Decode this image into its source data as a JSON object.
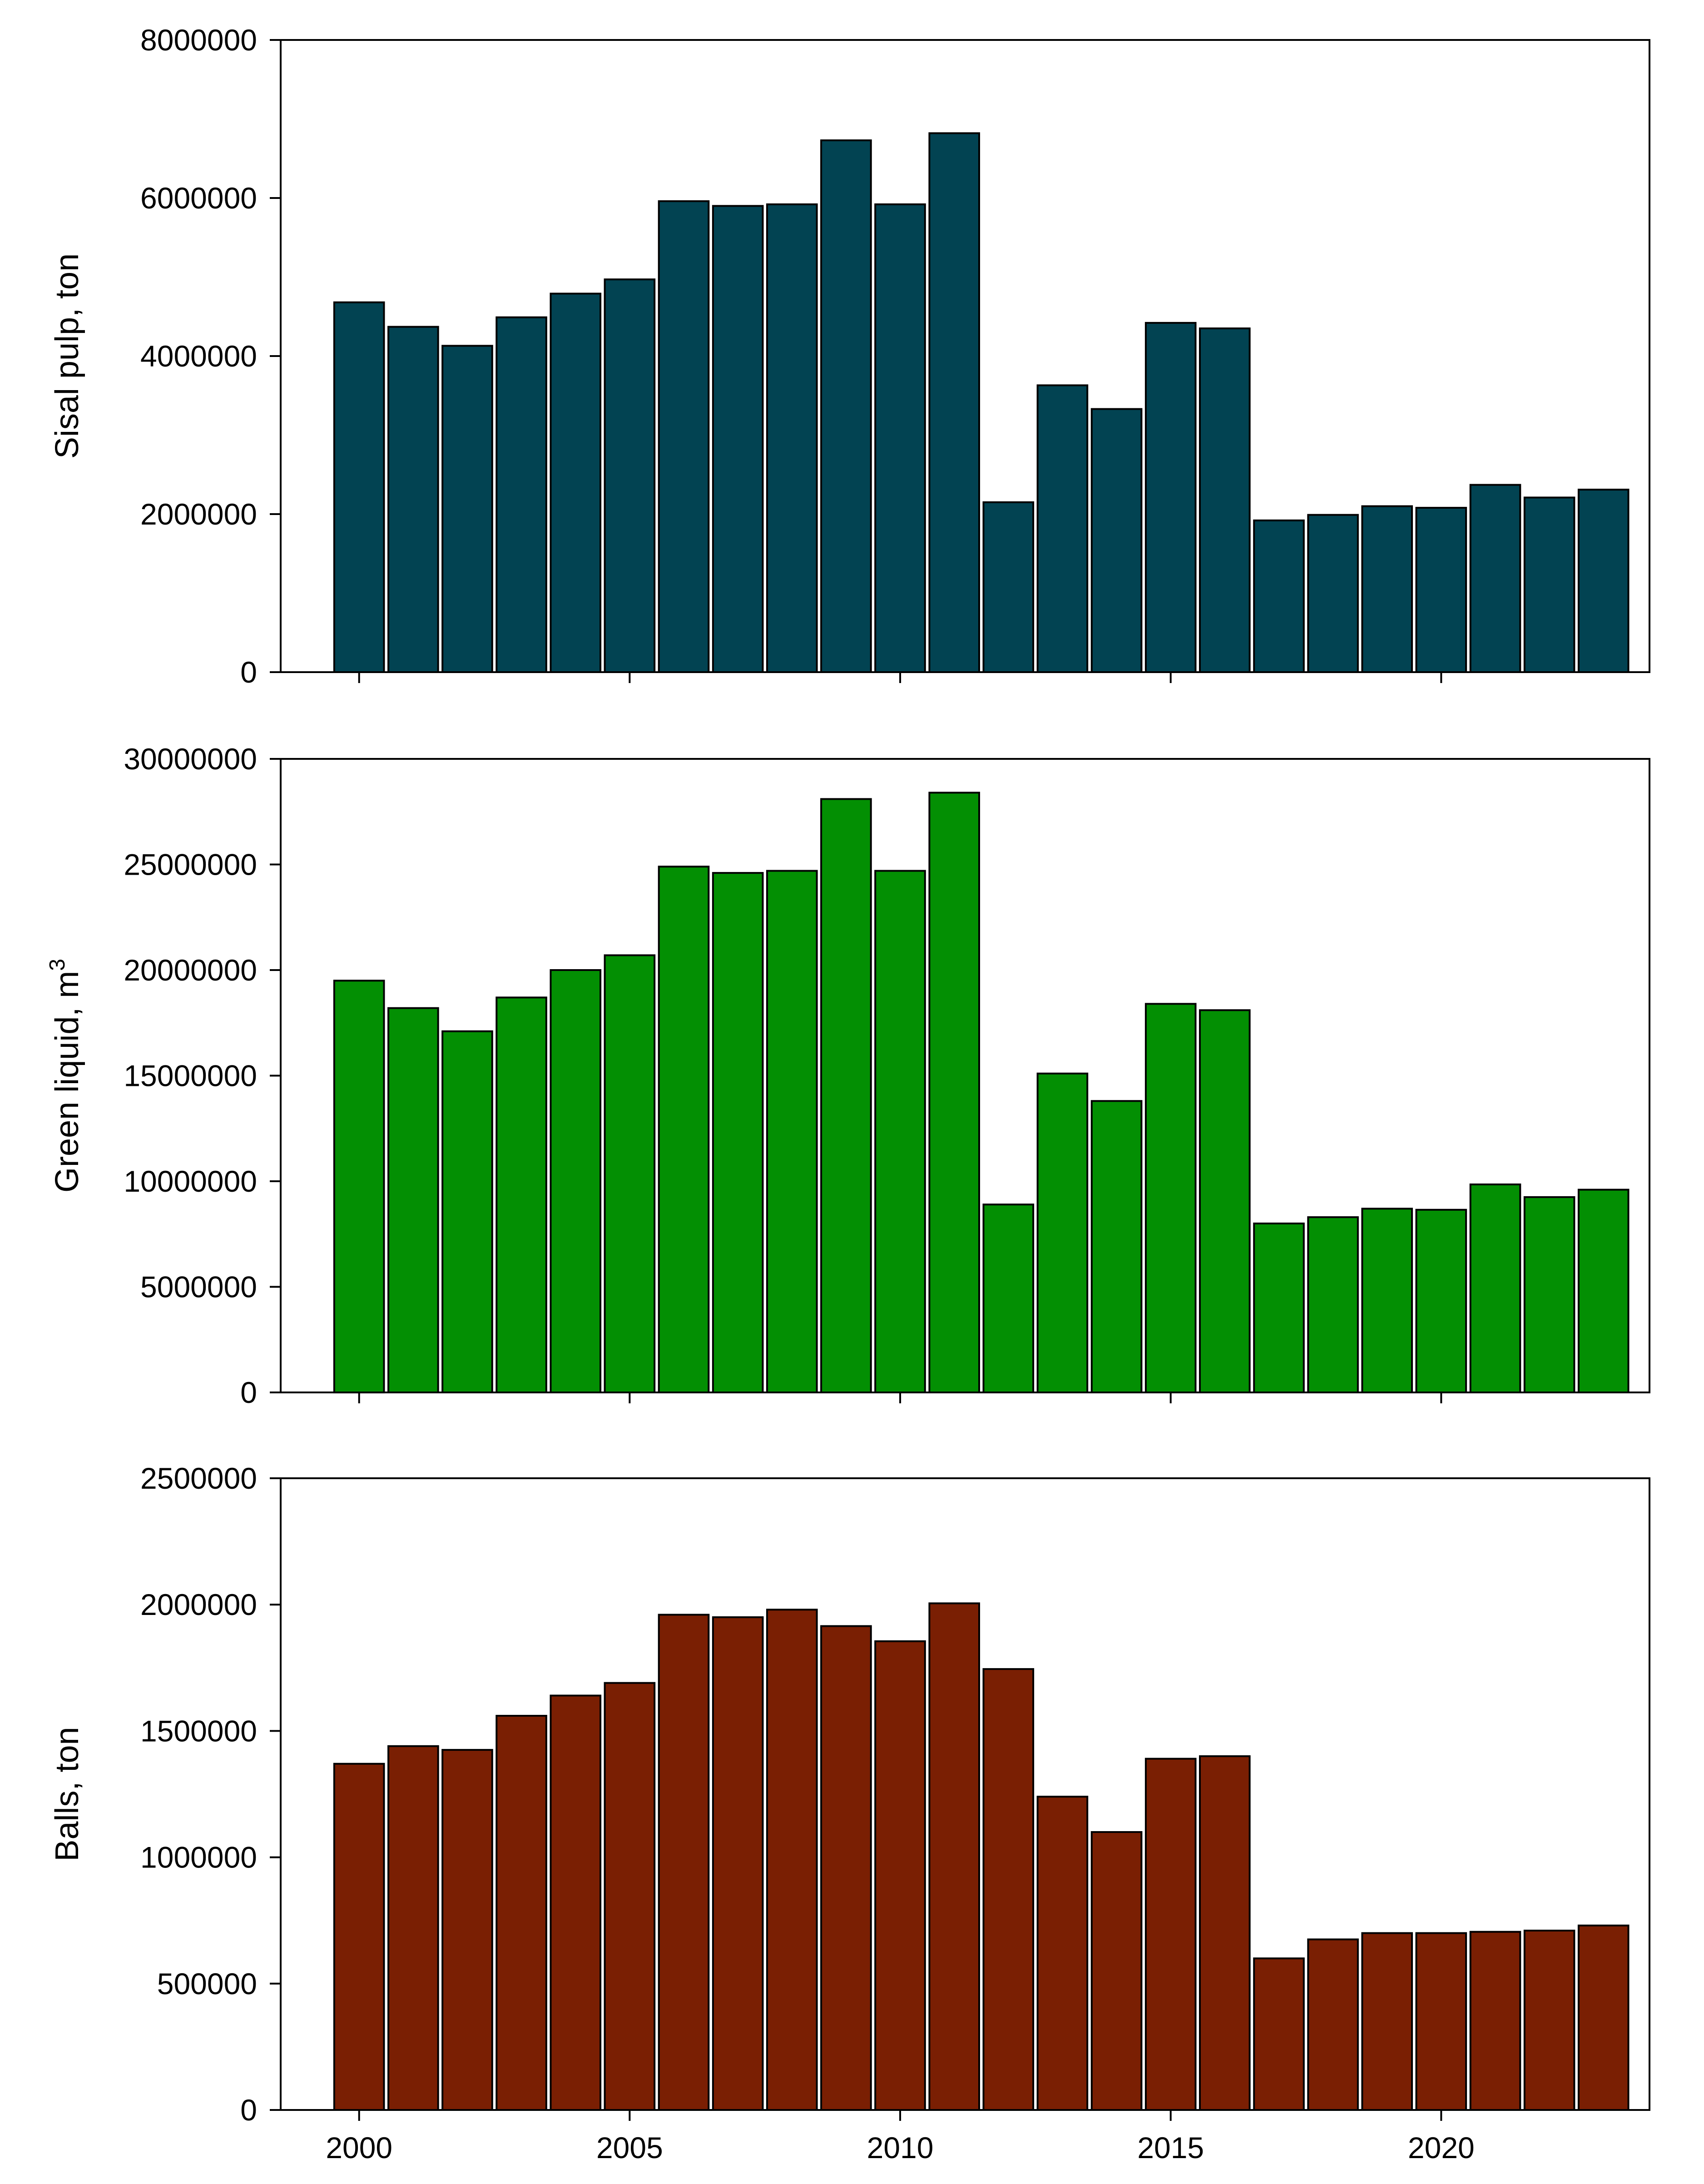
{
  "chart_data": [
    {
      "type": "bar",
      "panel": "top",
      "ylabel": "Sisal pulp, ton",
      "ylabel_sup": "",
      "xlim": [
        1998.55,
        2023.85
      ],
      "ylim": [
        0,
        8000000
      ],
      "yticks": [
        0,
        2000000,
        4000000,
        6000000,
        8000000
      ],
      "ytick_labels": [
        "0",
        "2000000",
        "4000000",
        "6000000",
        "8000000"
      ],
      "xticks": [
        2000,
        2005,
        2010,
        2015,
        2020
      ],
      "xtick_labels": [],
      "color": "#024352",
      "categories": [
        2000,
        2001,
        2002,
        2003,
        2004,
        2005,
        2006,
        2007,
        2008,
        2009,
        2010,
        2011,
        2012,
        2013,
        2014,
        2015,
        2016,
        2017,
        2018,
        2019,
        2020,
        2021,
        2022,
        2023
      ],
      "values": [
        4680000,
        4370000,
        4130000,
        4490000,
        4790000,
        4970000,
        5960000,
        5900000,
        5920000,
        6730000,
        5920000,
        6820000,
        2150000,
        3630000,
        3330000,
        4420000,
        4350000,
        1920000,
        1990000,
        2100000,
        2080000,
        2370000,
        2210000,
        2310000
      ]
    },
    {
      "type": "bar",
      "panel": "middle",
      "ylabel": "Green liquid, m",
      "ylabel_sup": "3",
      "xlim": [
        1998.55,
        2023.85
      ],
      "ylim": [
        0,
        30000000
      ],
      "yticks": [
        0,
        5000000,
        10000000,
        15000000,
        20000000,
        25000000,
        30000000
      ],
      "ytick_labels": [
        "0",
        "5000000",
        "10000000",
        "15000000",
        "20000000",
        "25000000",
        "30000000"
      ],
      "xticks": [
        2000,
        2005,
        2010,
        2015,
        2020
      ],
      "xtick_labels": [],
      "color": "#038f03",
      "categories": [
        2000,
        2001,
        2002,
        2003,
        2004,
        2005,
        2006,
        2007,
        2008,
        2009,
        2010,
        2011,
        2012,
        2013,
        2014,
        2015,
        2016,
        2017,
        2018,
        2019,
        2020,
        2021,
        2022,
        2023
      ],
      "values": [
        19500000,
        18200000,
        17100000,
        18700000,
        20000000,
        20700000,
        24900000,
        24600000,
        24700000,
        28100000,
        24700000,
        28400000,
        8900000,
        15100000,
        13800000,
        18400000,
        18100000,
        8000000,
        8300000,
        8700000,
        8650000,
        9850000,
        9250000,
        9600000
      ]
    },
    {
      "type": "bar",
      "panel": "bottom",
      "ylabel": "Balls, ton",
      "ylabel_sup": "",
      "xlim": [
        1998.55,
        2023.85
      ],
      "ylim": [
        0,
        2500000
      ],
      "yticks": [
        0,
        500000,
        1000000,
        1500000,
        2000000,
        2500000
      ],
      "ytick_labels": [
        "0",
        "500000",
        "1000000",
        "1500000",
        "2000000",
        "2500000"
      ],
      "xticks": [
        2000,
        2005,
        2010,
        2015,
        2020
      ],
      "xtick_labels": [
        "2000",
        "2005",
        "2010",
        "2015",
        "2020"
      ],
      "color": "#7a1f03",
      "categories": [
        2000,
        2001,
        2002,
        2003,
        2004,
        2005,
        2006,
        2007,
        2008,
        2009,
        2010,
        2011,
        2012,
        2013,
        2014,
        2015,
        2016,
        2017,
        2018,
        2019,
        2020,
        2021,
        2022,
        2023
      ],
      "values": [
        1370000,
        1440000,
        1425000,
        1560000,
        1640000,
        1690000,
        1960000,
        1950000,
        1980000,
        1915000,
        1855000,
        2005000,
        1745000,
        1240000,
        1100000,
        1390000,
        1400000,
        600000,
        675000,
        700000,
        700000,
        705000,
        710000,
        730000
      ]
    }
  ]
}
